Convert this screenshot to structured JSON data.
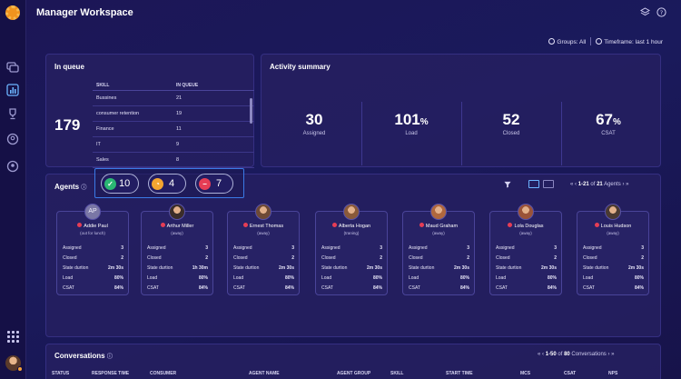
{
  "app": {
    "title": "Manager Workspace"
  },
  "filters": {
    "groups": "Groups: All",
    "timeframe": "Timeframe: last 1 hour"
  },
  "in_queue": {
    "title": "In queue",
    "count": "179",
    "columns": [
      "SKILL",
      "IN QUEUE"
    ],
    "rows": [
      {
        "skill": "Bussines",
        "count": "21"
      },
      {
        "skill": "consumer retention",
        "count": "19"
      },
      {
        "skill": "Finance",
        "count": "11"
      },
      {
        "skill": "IT",
        "count": "9"
      },
      {
        "skill": "Sales",
        "count": "8"
      }
    ]
  },
  "activity": {
    "title": "Activity summary",
    "stats": [
      {
        "value": "30",
        "unit": "",
        "label": "Assigned"
      },
      {
        "value": "101",
        "unit": "%",
        "label": "Load"
      },
      {
        "value": "52",
        "unit": "",
        "label": "Closed"
      },
      {
        "value": "67",
        "unit": "%",
        "label": "CSAT"
      }
    ]
  },
  "status_pills": [
    {
      "icon": "check-icon",
      "count": "10",
      "color": "#2bb673"
    },
    {
      "icon": "clock-icon",
      "count": "4",
      "color": "#f3a530"
    },
    {
      "icon": "minus-icon",
      "count": "7",
      "color": "#e63d55"
    }
  ],
  "agents": {
    "title": "Agents",
    "pager": {
      "range": "1-21",
      "of": "of",
      "total": "21",
      "label": "Agents"
    },
    "stat_labels": [
      "Assigned",
      "Closed",
      "State durtion",
      "Load",
      "CSAT"
    ],
    "list": [
      {
        "name": "Addie Paul",
        "status": "(out for lunch)",
        "initials": "AP",
        "stats": [
          "3",
          "2",
          "2m 30s",
          "80%",
          "84%"
        ]
      },
      {
        "name": "Arthur Miller",
        "status": "(away)",
        "initials": "",
        "stats": [
          "3",
          "2",
          "1h 30m",
          "80%",
          "84%"
        ]
      },
      {
        "name": "Ernest Thomas",
        "status": "(away)",
        "initials": "",
        "stats": [
          "3",
          "2",
          "2m 30s",
          "80%",
          "84%"
        ]
      },
      {
        "name": "Alberta Hogan",
        "status": "(traning)",
        "initials": "",
        "stats": [
          "3",
          "2",
          "2m 30s",
          "80%",
          "84%"
        ]
      },
      {
        "name": "Maud Graham",
        "status": "(away)",
        "initials": "",
        "stats": [
          "3",
          "2",
          "2m 30s",
          "80%",
          "84%"
        ]
      },
      {
        "name": "Lola Douglas",
        "status": "(away)",
        "initials": "",
        "stats": [
          "3",
          "2",
          "2m 30s",
          "80%",
          "84%"
        ]
      },
      {
        "name": "Louis Hudson",
        "status": "(away)",
        "initials": "",
        "stats": [
          "3",
          "2",
          "2m 30s",
          "80%",
          "84%"
        ]
      }
    ]
  },
  "conversations": {
    "title": "Conversations",
    "pager": {
      "range": "1-50",
      "of": "of",
      "total": "80",
      "label": "Conversations"
    },
    "columns": [
      "STATUS",
      "RESPONSE TIME",
      "CONSUMER",
      "AGENT NAME",
      "AGENT GROUP",
      "SKILL",
      "START TIME",
      "MCS",
      "CSAT",
      "NPS"
    ]
  }
}
